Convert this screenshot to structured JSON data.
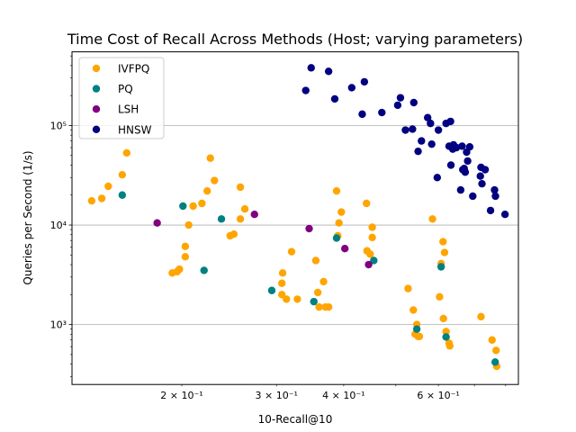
{
  "chart_data": {
    "type": "scatter",
    "title": "Time Cost of Recall Across Methods (Host; varying parameters)",
    "xlabel": "10-Recall@10",
    "ylabel": "Queries per Second (1/s)",
    "xscale": "log",
    "yscale": "log",
    "xlim": [
      0.125,
      0.845
    ],
    "ylim": [
      250,
      550000
    ],
    "grid": "horizontal major",
    "legend": "top-left",
    "x_ticks": [
      {
        "value": 0.2,
        "label": "2 × 10⁻¹"
      },
      {
        "value": 0.3,
        "label": "3 × 10⁻¹"
      },
      {
        "value": 0.4,
        "label": "4 × 10⁻¹"
      },
      {
        "value": 0.6,
        "label": "6 × 10⁻¹"
      }
    ],
    "y_ticks": [
      {
        "value": 1000,
        "label": "10³"
      },
      {
        "value": 10000,
        "label": "10⁴"
      },
      {
        "value": 100000,
        "label": "10⁵"
      }
    ],
    "series": [
      {
        "name": "IVFPQ",
        "color": "#FFA500",
        "points": [
          [
            0.136,
            17500
          ],
          [
            0.142,
            18500
          ],
          [
            0.146,
            24500
          ],
          [
            0.155,
            32000
          ],
          [
            0.158,
            53000
          ],
          [
            0.192,
            3300
          ],
          [
            0.196,
            3400
          ],
          [
            0.198,
            3600
          ],
          [
            0.203,
            6100
          ],
          [
            0.203,
            4800
          ],
          [
            0.206,
            10000
          ],
          [
            0.21,
            15500
          ],
          [
            0.218,
            16500
          ],
          [
            0.223,
            22000
          ],
          [
            0.226,
            47000
          ],
          [
            0.23,
            28000
          ],
          [
            0.246,
            7800
          ],
          [
            0.25,
            8100
          ],
          [
            0.257,
            24000
          ],
          [
            0.257,
            11500
          ],
          [
            0.262,
            14500
          ],
          [
            0.308,
            3300
          ],
          [
            0.307,
            2600
          ],
          [
            0.307,
            2000
          ],
          [
            0.313,
            1800
          ],
          [
            0.32,
            5400
          ],
          [
            0.328,
            1800
          ],
          [
            0.355,
            4400
          ],
          [
            0.358,
            2100
          ],
          [
            0.36,
            1500
          ],
          [
            0.367,
            2700
          ],
          [
            0.37,
            1500
          ],
          [
            0.375,
            1500
          ],
          [
            0.388,
            22000
          ],
          [
            0.39,
            7800
          ],
          [
            0.392,
            10500
          ],
          [
            0.396,
            13500
          ],
          [
            0.441,
            16500
          ],
          [
            0.442,
            5500
          ],
          [
            0.448,
            5100
          ],
          [
            0.452,
            7500
          ],
          [
            0.452,
            9500
          ],
          [
            0.527,
            2300
          ],
          [
            0.539,
            1400
          ],
          [
            0.543,
            800
          ],
          [
            0.547,
            1000
          ],
          [
            0.55,
            760
          ],
          [
            0.553,
            760
          ],
          [
            0.585,
            11500
          ],
          [
            0.603,
            1900
          ],
          [
            0.607,
            4100
          ],
          [
            0.612,
            6800
          ],
          [
            0.613,
            1150
          ],
          [
            0.616,
            5300
          ],
          [
            0.62,
            850
          ],
          [
            0.628,
            650
          ],
          [
            0.63,
            610
          ],
          [
            0.72,
            1200
          ],
          [
            0.755,
            700
          ],
          [
            0.768,
            550
          ],
          [
            0.77,
            380
          ]
        ]
      },
      {
        "name": "PQ",
        "color": "#008080",
        "points": [
          [
            0.155,
            20000
          ],
          [
            0.201,
            15500
          ],
          [
            0.22,
            3500
          ],
          [
            0.237,
            11500
          ],
          [
            0.294,
            2200
          ],
          [
            0.352,
            1700
          ],
          [
            0.388,
            7400
          ],
          [
            0.455,
            4400
          ],
          [
            0.547,
            900
          ],
          [
            0.607,
            3800
          ],
          [
            0.62,
            750
          ],
          [
            0.765,
            420
          ]
        ]
      },
      {
        "name": "LSH",
        "color": "#800080",
        "points": [
          [
            0.18,
            10500
          ],
          [
            0.273,
            12800
          ],
          [
            0.345,
            9200
          ],
          [
            0.402,
            5800
          ],
          [
            0.445,
            4000
          ]
        ]
      },
      {
        "name": "HNSW",
        "color": "#000080",
        "points": [
          [
            0.34,
            225000
          ],
          [
            0.348,
            380000
          ],
          [
            0.375,
            350000
          ],
          [
            0.385,
            185000
          ],
          [
            0.414,
            240000
          ],
          [
            0.433,
            130000
          ],
          [
            0.437,
            275000
          ],
          [
            0.471,
            135000
          ],
          [
            0.504,
            160000
          ],
          [
            0.51,
            190000
          ],
          [
            0.521,
            90000
          ],
          [
            0.537,
            92000
          ],
          [
            0.54,
            170000
          ],
          [
            0.55,
            55000
          ],
          [
            0.558,
            70000
          ],
          [
            0.573,
            120000
          ],
          [
            0.58,
            105000
          ],
          [
            0.583,
            65000
          ],
          [
            0.597,
            30000
          ],
          [
            0.6,
            90000
          ],
          [
            0.62,
            105000
          ],
          [
            0.628,
            62000
          ],
          [
            0.632,
            110000
          ],
          [
            0.633,
            40000
          ],
          [
            0.638,
            58000
          ],
          [
            0.64,
            64000
          ],
          [
            0.648,
            60000
          ],
          [
            0.66,
            22500
          ],
          [
            0.664,
            62000
          ],
          [
            0.666,
            36000
          ],
          [
            0.67,
            37000
          ],
          [
            0.673,
            34000
          ],
          [
            0.677,
            54000
          ],
          [
            0.68,
            44000
          ],
          [
            0.686,
            61000
          ],
          [
            0.695,
            19500
          ],
          [
            0.718,
            31000
          ],
          [
            0.72,
            38000
          ],
          [
            0.723,
            26000
          ],
          [
            0.733,
            36000
          ],
          [
            0.75,
            14000
          ],
          [
            0.763,
            22500
          ],
          [
            0.766,
            19500
          ],
          [
            0.798,
            12800
          ]
        ]
      }
    ]
  }
}
